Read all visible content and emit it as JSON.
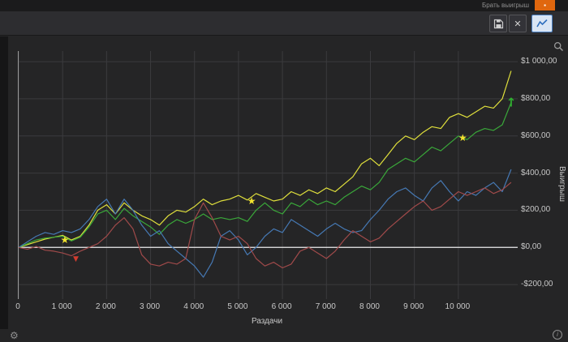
{
  "titlebar": {
    "right_text": "Брать выигрыш",
    "badge_glyph": "▪"
  },
  "toolbar": {
    "close_glyph": "✕"
  },
  "icons": {
    "gear": "⚙",
    "info": "i"
  },
  "chart_data": {
    "type": "line",
    "title": "",
    "xlabel": "Раздачи",
    "ylabel": "Выигрыш",
    "grid": true,
    "legend": "none",
    "xlim": [
      0,
      11350
    ],
    "ylim": [
      -278,
      1057
    ],
    "x_ticks": {
      "values": [
        0,
        1000,
        2000,
        3000,
        4000,
        5000,
        6000,
        7000,
        8000,
        9000,
        10000
      ],
      "labels": [
        "0",
        "1 000",
        "2 000",
        "3 000",
        "4 000",
        "5 000",
        "6 000",
        "7 000",
        "8 000",
        "9 000",
        "10 000"
      ]
    },
    "y_ticks": {
      "values": [
        1000,
        800,
        600,
        400,
        200,
        0,
        -200
      ],
      "labels": [
        "$1 000,00",
        "$800,00",
        "$600,00",
        "$400,00",
        "$200,00",
        "$0,00",
        "-$200,00"
      ]
    },
    "zero_line": {
      "value": 0,
      "color": "#ededed"
    },
    "x": [
      0,
      200,
      400,
      600,
      800,
      1000,
      1200,
      1400,
      1600,
      1800,
      2000,
      2200,
      2400,
      2600,
      2800,
      3000,
      3200,
      3400,
      3600,
      3800,
      4000,
      4200,
      4400,
      4600,
      4800,
      5000,
      5200,
      5400,
      5600,
      5800,
      6000,
      6200,
      6400,
      6600,
      6800,
      7000,
      7200,
      7400,
      7600,
      7800,
      8000,
      8200,
      8400,
      8600,
      8800,
      9000,
      9200,
      9400,
      9600,
      9800,
      10000,
      10200,
      10400,
      10600,
      10800,
      11000,
      11200
    ],
    "series": [
      {
        "name": "line-yellow",
        "color": "#e0e03c",
        "values": [
          0,
          15,
          30,
          45,
          55,
          65,
          40,
          60,
          120,
          200,
          230,
          180,
          240,
          200,
          170,
          150,
          120,
          170,
          200,
          190,
          220,
          260,
          230,
          250,
          260,
          280,
          255,
          290,
          270,
          250,
          260,
          300,
          280,
          310,
          290,
          320,
          300,
          340,
          380,
          450,
          480,
          440,
          500,
          560,
          600,
          580,
          620,
          650,
          640,
          700,
          720,
          700,
          730,
          760,
          750,
          800,
          950
        ]
      },
      {
        "name": "line-green",
        "color": "#3aa83a",
        "values": [
          0,
          20,
          40,
          50,
          55,
          60,
          35,
          55,
          110,
          180,
          200,
          150,
          210,
          170,
          140,
          110,
          70,
          120,
          150,
          130,
          150,
          180,
          150,
          160,
          150,
          160,
          140,
          200,
          240,
          200,
          180,
          240,
          220,
          260,
          230,
          250,
          230,
          270,
          300,
          330,
          310,
          350,
          420,
          450,
          480,
          460,
          500,
          540,
          520,
          560,
          600,
          580,
          620,
          640,
          630,
          660,
          780
        ]
      },
      {
        "name": "line-blue",
        "color": "#4679b4",
        "values": [
          0,
          30,
          60,
          80,
          70,
          90,
          80,
          100,
          150,
          220,
          260,
          180,
          260,
          200,
          120,
          60,
          90,
          20,
          -20,
          -60,
          -100,
          -160,
          -80,
          60,
          90,
          40,
          -40,
          0,
          60,
          100,
          80,
          150,
          120,
          90,
          60,
          100,
          130,
          100,
          80,
          90,
          150,
          200,
          260,
          300,
          320,
          280,
          250,
          320,
          360,
          300,
          250,
          300,
          280,
          320,
          350,
          300,
          420
        ]
      },
      {
        "name": "line-red",
        "color": "#a04a4a",
        "values": [
          0,
          -10,
          5,
          -15,
          -20,
          -30,
          -45,
          -20,
          0,
          20,
          60,
          120,
          160,
          100,
          -40,
          -90,
          -100,
          -80,
          -90,
          -60,
          150,
          240,
          160,
          60,
          40,
          60,
          20,
          -60,
          -100,
          -80,
          -110,
          -90,
          -20,
          0,
          -30,
          -60,
          -20,
          40,
          90,
          60,
          30,
          50,
          100,
          140,
          180,
          220,
          250,
          200,
          220,
          260,
          300,
          280,
          300,
          320,
          290,
          310,
          350
        ]
      }
    ],
    "markers": [
      {
        "type": "star",
        "color": "#f2e32e",
        "x": 1050,
        "y": 40
      },
      {
        "type": "star",
        "color": "#f2e32e",
        "x": 5300,
        "y": 250
      },
      {
        "type": "star",
        "color": "#f2e32e",
        "x": 10100,
        "y": 590
      },
      {
        "type": "arrow-up",
        "color": "#2fae2f",
        "x": 11200,
        "y": 780
      },
      {
        "type": "triangle-down",
        "color": "#d23b2f",
        "x": 1300,
        "y": -65
      }
    ]
  }
}
